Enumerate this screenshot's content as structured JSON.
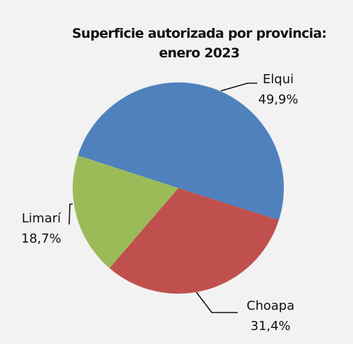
{
  "chart_data": {
    "type": "pie",
    "title": "Superficie autorizada por provincia:",
    "subtitle": "enero 2023",
    "slices": [
      {
        "label": "Elqui",
        "value": 49.9,
        "value_label": "49,9%",
        "color": "#4f81bd"
      },
      {
        "label": "Choapa",
        "value": 31.4,
        "value_label": "31,4%",
        "color": "#c0504d"
      },
      {
        "label": "Limarí",
        "value": 18.7,
        "value_label": "18,7%",
        "color": "#9bbb59"
      }
    ]
  },
  "background_color": "#f2f2f2"
}
